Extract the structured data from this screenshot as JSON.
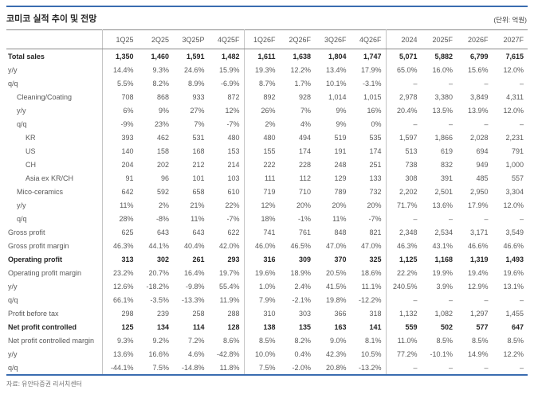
{
  "meta": {
    "title": "코미코 실적 추이 및 전망",
    "unit_label": "(단위: 억원)",
    "source": "자료: 유안타증권 리서치센터"
  },
  "colors": {
    "accent_blue": "#3a6cb0",
    "border_dark": "#8a8a8a",
    "border_light": "#c4c4c4",
    "text_regular": "#595959",
    "text_bold": "#262626"
  },
  "table": {
    "column_headers": [
      "1Q25",
      "2Q25",
      "3Q25P",
      "4Q25F",
      "1Q26F",
      "2Q26F",
      "3Q26F",
      "4Q26F",
      "2024",
      "2025F",
      "2026F",
      "2027F"
    ],
    "separator_after_value_columns": [
      4,
      8
    ],
    "rows": [
      {
        "label": "Total sales",
        "indent": 0,
        "bold": true,
        "values": [
          "1,350",
          "1,460",
          "1,591",
          "1,482",
          "1,611",
          "1,638",
          "1,804",
          "1,747",
          "5,071",
          "5,882",
          "6,799",
          "7,615"
        ]
      },
      {
        "label": "y/y",
        "indent": 0,
        "bold": false,
        "values": [
          "14.4%",
          "9.3%",
          "24.6%",
          "15.9%",
          "19.3%",
          "12.2%",
          "13.4%",
          "17.9%",
          "65.0%",
          "16.0%",
          "15.6%",
          "12.0%"
        ]
      },
      {
        "label": "q/q",
        "indent": 0,
        "bold": false,
        "values": [
          "5.5%",
          "8.2%",
          "8.9%",
          "-6.9%",
          "8.7%",
          "1.7%",
          "10.1%",
          "-3.1%",
          "–",
          "–",
          "–",
          "–"
        ]
      },
      {
        "label": "Cleaning/Coating",
        "indent": 1,
        "bold": false,
        "values": [
          "708",
          "868",
          "933",
          "872",
          "892",
          "928",
          "1,014",
          "1,015",
          "2,978",
          "3,380",
          "3,849",
          "4,311"
        ]
      },
      {
        "label": "y/y",
        "indent": 1,
        "bold": false,
        "values": [
          "6%",
          "9%",
          "27%",
          "12%",
          "26%",
          "7%",
          "9%",
          "16%",
          "20.4%",
          "13.5%",
          "13.9%",
          "12.0%"
        ]
      },
      {
        "label": "q/q",
        "indent": 1,
        "bold": false,
        "values": [
          "-9%",
          "23%",
          "7%",
          "-7%",
          "2%",
          "4%",
          "9%",
          "0%",
          "–",
          "–",
          "–",
          "–"
        ]
      },
      {
        "label": "KR",
        "indent": 2,
        "bold": false,
        "values": [
          "393",
          "462",
          "531",
          "480",
          "480",
          "494",
          "519",
          "535",
          "1,597",
          "1,866",
          "2,028",
          "2,231"
        ]
      },
      {
        "label": "US",
        "indent": 2,
        "bold": false,
        "values": [
          "140",
          "158",
          "168",
          "153",
          "155",
          "174",
          "191",
          "174",
          "513",
          "619",
          "694",
          "791"
        ]
      },
      {
        "label": "CH",
        "indent": 2,
        "bold": false,
        "values": [
          "204",
          "202",
          "212",
          "214",
          "222",
          "228",
          "248",
          "251",
          "738",
          "832",
          "949",
          "1,000"
        ]
      },
      {
        "label": "Asia ex KR/CH",
        "indent": 2,
        "bold": false,
        "values": [
          "91",
          "96",
          "101",
          "103",
          "111",
          "112",
          "129",
          "133",
          "308",
          "391",
          "485",
          "557"
        ]
      },
      {
        "label": "Mico-ceramics",
        "indent": 1,
        "bold": false,
        "values": [
          "642",
          "592",
          "658",
          "610",
          "719",
          "710",
          "789",
          "732",
          "2,202",
          "2,501",
          "2,950",
          "3,304"
        ]
      },
      {
        "label": "y/y",
        "indent": 1,
        "bold": false,
        "values": [
          "11%",
          "2%",
          "21%",
          "22%",
          "12%",
          "20%",
          "20%",
          "20%",
          "71.7%",
          "13.6%",
          "17.9%",
          "12.0%"
        ]
      },
      {
        "label": "q/q",
        "indent": 1,
        "bold": false,
        "values": [
          "28%",
          "-8%",
          "11%",
          "-7%",
          "18%",
          "-1%",
          "11%",
          "-7%",
          "–",
          "–",
          "–",
          "–"
        ]
      },
      {
        "label": "Gross profit",
        "indent": 0,
        "bold": false,
        "values": [
          "625",
          "643",
          "643",
          "622",
          "741",
          "761",
          "848",
          "821",
          "2,348",
          "2,534",
          "3,171",
          "3,549"
        ]
      },
      {
        "label": "Gross profit margin",
        "indent": 0,
        "bold": false,
        "values": [
          "46.3%",
          "44.1%",
          "40.4%",
          "42.0%",
          "46.0%",
          "46.5%",
          "47.0%",
          "47.0%",
          "46.3%",
          "43.1%",
          "46.6%",
          "46.6%"
        ]
      },
      {
        "label": "Operating profit",
        "indent": 0,
        "bold": true,
        "values": [
          "313",
          "302",
          "261",
          "293",
          "316",
          "309",
          "370",
          "325",
          "1,125",
          "1,168",
          "1,319",
          "1,493"
        ]
      },
      {
        "label": "Operating profit margin",
        "indent": 0,
        "bold": false,
        "values": [
          "23.2%",
          "20.7%",
          "16.4%",
          "19.7%",
          "19.6%",
          "18.9%",
          "20.5%",
          "18.6%",
          "22.2%",
          "19.9%",
          "19.4%",
          "19.6%"
        ]
      },
      {
        "label": "y/y",
        "indent": 0,
        "bold": false,
        "values": [
          "12.6%",
          "-18.2%",
          "-9.8%",
          "55.4%",
          "1.0%",
          "2.4%",
          "41.5%",
          "11.1%",
          "240.5%",
          "3.9%",
          "12.9%",
          "13.1%"
        ]
      },
      {
        "label": "q/q",
        "indent": 0,
        "bold": false,
        "values": [
          "66.1%",
          "-3.5%",
          "-13.3%",
          "11.9%",
          "7.9%",
          "-2.1%",
          "19.8%",
          "-12.2%",
          "–",
          "–",
          "–",
          "–"
        ]
      },
      {
        "label": "Profit before tax",
        "indent": 0,
        "bold": false,
        "values": [
          "298",
          "239",
          "258",
          "288",
          "310",
          "303",
          "366",
          "318",
          "1,132",
          "1,082",
          "1,297",
          "1,455"
        ]
      },
      {
        "label": "Net profit controlled",
        "indent": 0,
        "bold": true,
        "values": [
          "125",
          "134",
          "114",
          "128",
          "138",
          "135",
          "163",
          "141",
          "559",
          "502",
          "577",
          "647"
        ]
      },
      {
        "label": "Net profit controlled margin",
        "indent": 0,
        "bold": false,
        "values": [
          "9.3%",
          "9.2%",
          "7.2%",
          "8.6%",
          "8.5%",
          "8.2%",
          "9.0%",
          "8.1%",
          "11.0%",
          "8.5%",
          "8.5%",
          "8.5%"
        ]
      },
      {
        "label": "y/y",
        "indent": 0,
        "bold": false,
        "values": [
          "13.6%",
          "16.6%",
          "4.6%",
          "-42.8%",
          "10.0%",
          "0.4%",
          "42.3%",
          "10.5%",
          "77.2%",
          "-10.1%",
          "14.9%",
          "12.2%"
        ]
      },
      {
        "label": "q/q",
        "indent": 0,
        "bold": false,
        "values": [
          "-44.1%",
          "7.5%",
          "-14.8%",
          "11.8%",
          "7.5%",
          "-2.0%",
          "20.8%",
          "-13.2%",
          "–",
          "–",
          "–",
          "–"
        ]
      }
    ]
  }
}
